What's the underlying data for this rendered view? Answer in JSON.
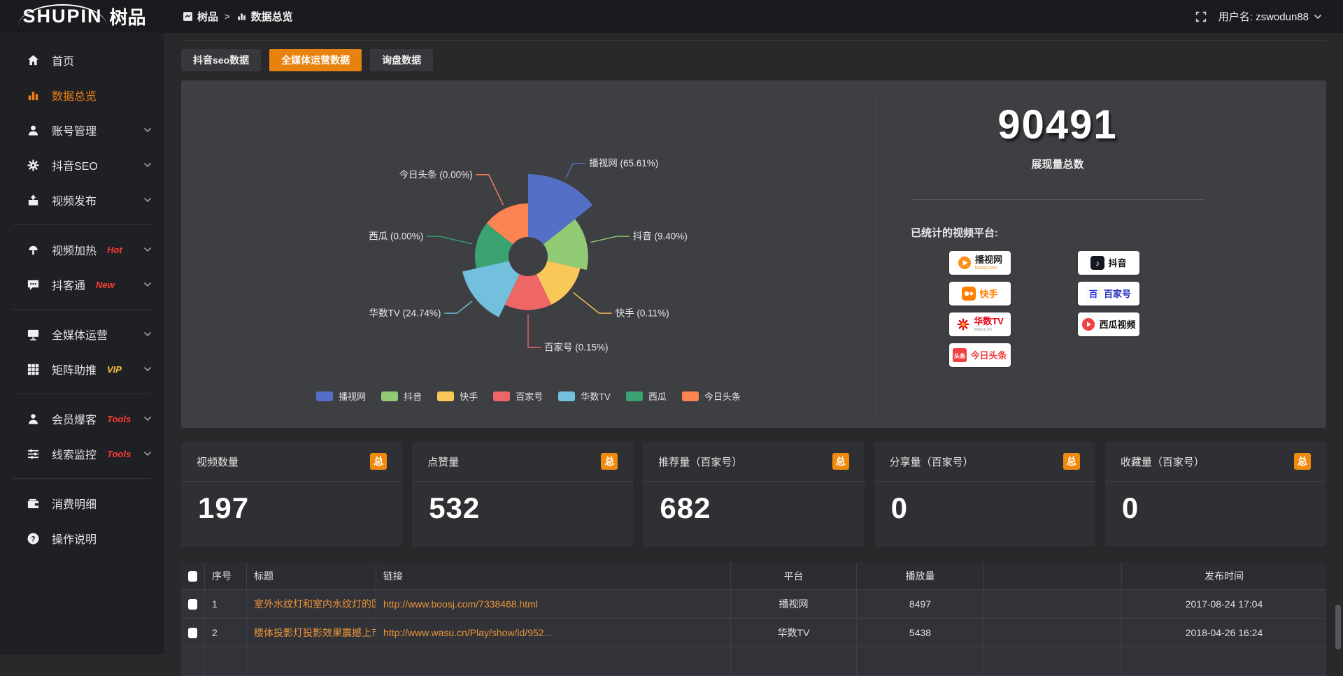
{
  "topbar": {
    "logo_latin": "SHUPIN",
    "logo_cjk": "树品",
    "breadcrumb": {
      "root": "树品",
      "separator": ">",
      "current": "数据总览"
    },
    "username": "用户名: zswodun88"
  },
  "sidebar": {
    "items": [
      {
        "label": "首页",
        "icon": "home-icon",
        "active": false,
        "chevron": false,
        "tag": "",
        "divider_after": false
      },
      {
        "label": "数据总览",
        "icon": "bar-chart-icon",
        "active": true,
        "chevron": false,
        "tag": "",
        "divider_after": false
      },
      {
        "label": "账号管理",
        "icon": "user-icon",
        "active": false,
        "chevron": true,
        "tag": "",
        "divider_after": false
      },
      {
        "label": "抖音SEO",
        "icon": "gear-icon",
        "active": false,
        "chevron": true,
        "tag": "",
        "divider_after": false
      },
      {
        "label": "视频发布",
        "icon": "publish-icon",
        "active": false,
        "chevron": true,
        "tag": "",
        "divider_after": true
      },
      {
        "label": "视频加热",
        "icon": "heat-icon",
        "active": false,
        "chevron": true,
        "tag": "Hot",
        "tag_color": "#ff3b30",
        "divider_after": false
      },
      {
        "label": "抖客通",
        "icon": "chat-icon",
        "active": false,
        "chevron": true,
        "tag": "New",
        "tag_color": "#ff3b30",
        "divider_after": true
      },
      {
        "label": "全媒体运营",
        "icon": "monitor-icon",
        "active": false,
        "chevron": true,
        "tag": "",
        "divider_after": false
      },
      {
        "label": "矩阵助推",
        "icon": "grid-icon",
        "active": false,
        "chevron": true,
        "tag": "VIP",
        "tag_color": "#f7c33f",
        "divider_after": true
      },
      {
        "label": "会员爆客",
        "icon": "member-icon",
        "active": false,
        "chevron": true,
        "tag": "Tools",
        "tag_color": "#ff3b30",
        "divider_after": false
      },
      {
        "label": "线索监控",
        "icon": "sliders-icon",
        "active": false,
        "chevron": true,
        "tag": "Tools",
        "tag_color": "#ff3b30",
        "divider_after": true
      },
      {
        "label": "消费明细",
        "icon": "wallet-icon",
        "active": false,
        "chevron": false,
        "tag": "",
        "divider_after": false
      },
      {
        "label": "操作说明",
        "icon": "question-icon",
        "active": false,
        "chevron": false,
        "tag": "",
        "divider_after": false
      }
    ]
  },
  "tabs": [
    {
      "label": "抖音seo数据",
      "active": false
    },
    {
      "label": "全媒体运营数据",
      "active": true
    },
    {
      "label": "询盘数据",
      "active": false
    }
  ],
  "chart_data": {
    "type": "pie",
    "variant": "nightingale-rose",
    "label_format": "{name} ({value}%)",
    "legend_position": "bottom",
    "items": [
      {
        "name": "播视网",
        "value": 65.61,
        "color": "#5470c6"
      },
      {
        "name": "抖音",
        "value": 9.4,
        "color": "#91cc75"
      },
      {
        "name": "快手",
        "value": 0.11,
        "color": "#fac858"
      },
      {
        "name": "百家号",
        "value": 0.15,
        "color": "#ee6666"
      },
      {
        "name": "华数TV",
        "value": 24.74,
        "color": "#73c0de"
      },
      {
        "name": "西瓜",
        "value": 0.0,
        "color": "#3ba272"
      },
      {
        "name": "今日头条",
        "value": 0.0,
        "color": "#fc8452"
      }
    ]
  },
  "summary": {
    "total_value": "90491",
    "total_label": "展现量总数",
    "platforms_label": "已统计的视频平台:",
    "platforms": [
      {
        "name": "播视网",
        "sub": "boosj.com",
        "icon": "boosj-logo",
        "name_color": "#222222",
        "sub_color": "#ff8f1f"
      },
      {
        "name": "抖音",
        "sub": "",
        "icon": "douyin-logo",
        "name_color": "#111111",
        "sub_color": ""
      },
      {
        "name": "快手",
        "sub": "",
        "icon": "kuaishou-logo",
        "name_color": "#ff7e00",
        "sub_color": ""
      },
      {
        "name": "百家号",
        "sub": "",
        "icon": "baijiahao-logo",
        "name_color": "#2430b8",
        "sub_color": ""
      },
      {
        "name": "华数TV",
        "sub": "wasu.cn",
        "icon": "wasu-logo",
        "name_color": "#e60012",
        "sub_color": "#999999"
      },
      {
        "name": "西瓜视频",
        "sub": "",
        "icon": "xigua-logo",
        "name_color": "#111111",
        "sub_color": ""
      },
      {
        "name": "今日头条",
        "sub": "",
        "icon": "toutiao-logo",
        "name_color": "#f04142",
        "sub_color": ""
      }
    ]
  },
  "stat_cards": [
    {
      "title": "视频数量",
      "badge": "总",
      "value": "197"
    },
    {
      "title": "点赞量",
      "badge": "总",
      "value": "532"
    },
    {
      "title": "推荐量（百家号）",
      "badge": "总",
      "value": "682"
    },
    {
      "title": "分享量（百家号）",
      "badge": "总",
      "value": "0"
    },
    {
      "title": "收藏量（百家号）",
      "badge": "总",
      "value": "0"
    }
  ],
  "table": {
    "headers": [
      "序号",
      "标题",
      "链接",
      "平台",
      "播放量",
      "",
      "发布时间"
    ],
    "rows": [
      {
        "index": "1",
        "title": "室外水纹灯和室内水纹灯的区别和简介",
        "link": "http://www.boosj.com/7338468.html",
        "platform": "播视网",
        "plays": "8497",
        "extra": "",
        "time": "2017-08-24 17:04"
      },
      {
        "index": "2",
        "title": "楼体投影灯投影效果震撼上市",
        "link": "http://www.wasu.cn/Play/show/id/952...",
        "platform": "华数TV",
        "plays": "5438",
        "extra": "",
        "time": "2018-04-26 16:24"
      },
      {
        "index": "",
        "title": "",
        "link": "",
        "platform": "",
        "plays": "",
        "extra": "",
        "time": ""
      }
    ]
  }
}
